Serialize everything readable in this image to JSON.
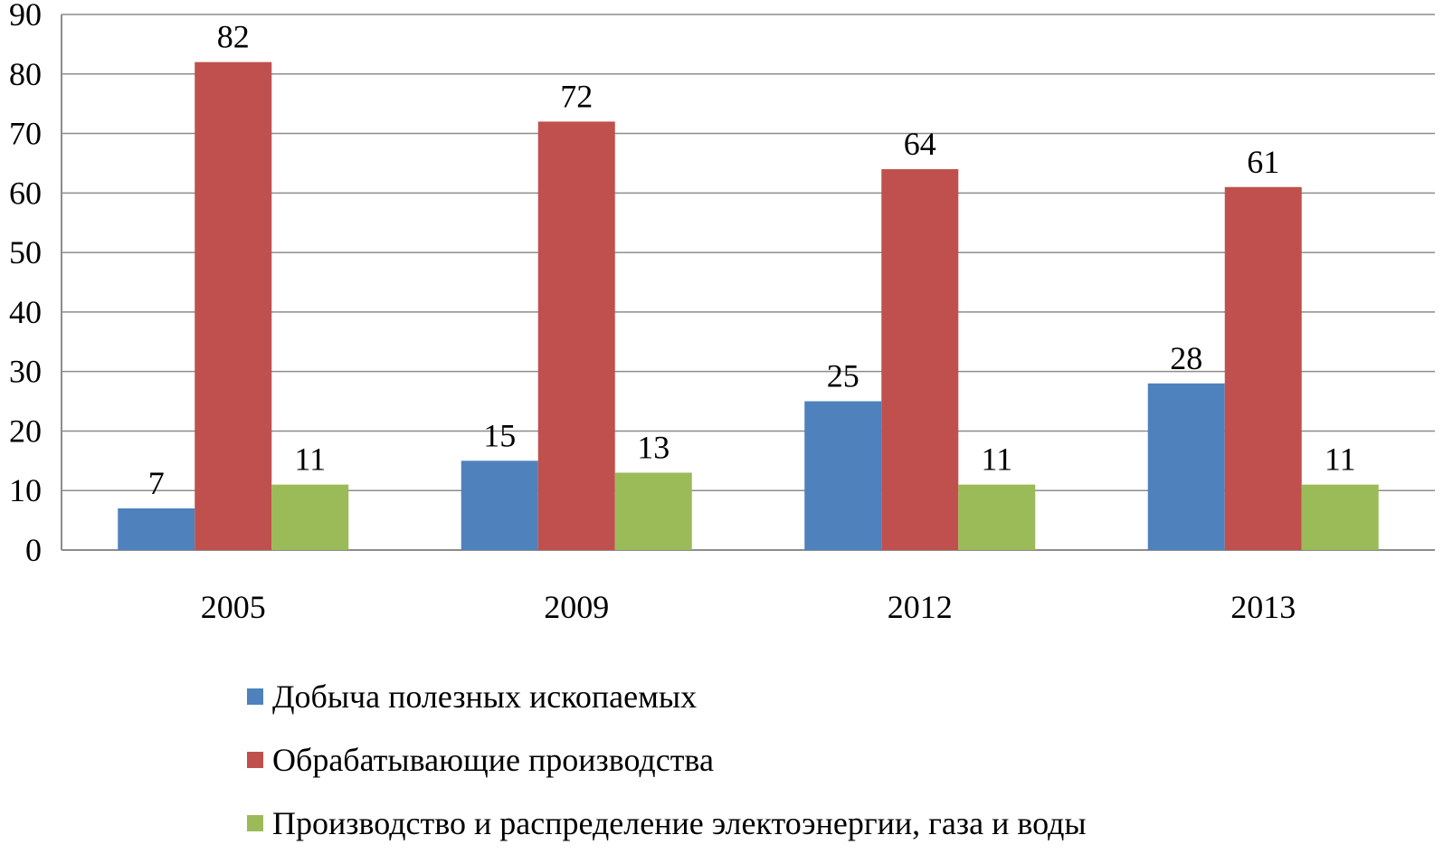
{
  "chart_data": {
    "type": "bar",
    "title": "",
    "xlabel": "",
    "ylabel": "",
    "categories": [
      "2005",
      "2009",
      "2012",
      "2013"
    ],
    "ylim": [
      0,
      90
    ],
    "yticks": [
      0,
      10,
      20,
      30,
      40,
      50,
      60,
      70,
      80,
      90
    ],
    "grid": true,
    "legend_position": "bottom",
    "series": [
      {
        "name": "Добыча полезных ископаемых",
        "values": [
          7,
          15,
          25,
          28
        ],
        "color": "#4F81BD"
      },
      {
        "name": "Обрабатывающие производства",
        "values": [
          82,
          72,
          64,
          61
        ],
        "color": "#C0504D"
      },
      {
        "name": "Производство и распределение электоэнергии, газа и воды",
        "values": [
          11,
          13,
          11,
          11
        ],
        "color": "#9BBB59"
      }
    ],
    "data_labels": true
  }
}
